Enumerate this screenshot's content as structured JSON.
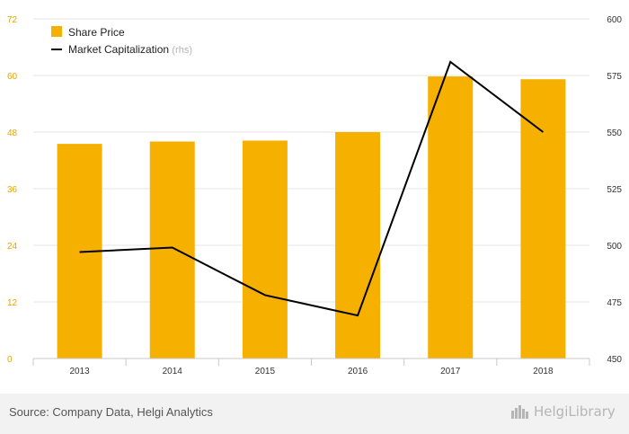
{
  "chart_data": {
    "type": "bar+line",
    "categories": [
      "2013",
      "2014",
      "2015",
      "2016",
      "2017",
      "2018"
    ],
    "series": [
      {
        "name": "Share Price",
        "type": "bar",
        "axis": "left",
        "color": "#f5b000",
        "values": [
          45.5,
          46,
          46.2,
          48,
          59.8,
          59.2
        ]
      },
      {
        "name": "Market Capitalization",
        "type": "line",
        "axis": "right",
        "color": "#000000",
        "values": [
          497,
          499,
          478,
          469,
          581,
          550
        ]
      }
    ],
    "legend": {
      "position": "top-left",
      "items": [
        {
          "label": "Share Price",
          "suffix": ""
        },
        {
          "label": "Market Capitalization",
          "suffix": "(rhs)"
        }
      ]
    },
    "y_left": {
      "ylim": [
        0,
        72
      ],
      "ticks": [
        "0",
        "12",
        "24",
        "36",
        "48",
        "60",
        "72"
      ],
      "tick_color": "#e8a400"
    },
    "y_right": {
      "ylim": [
        450,
        600
      ],
      "ticks": [
        "450",
        "475",
        "500",
        "525",
        "550",
        "575",
        "600"
      ]
    },
    "grid": true
  },
  "footer": {
    "source": "Source: Company Data, Helgi Analytics",
    "brand": "HelgiLibrary"
  }
}
